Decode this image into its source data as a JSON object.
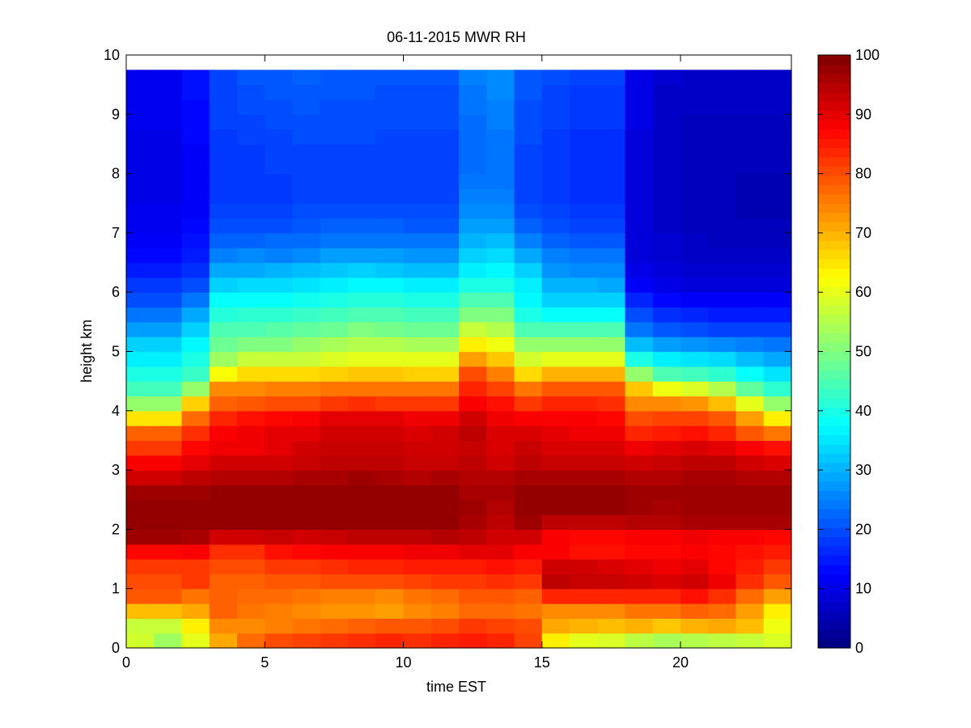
{
  "figure": {
    "background": "#ffffff"
  },
  "chart_data": {
    "type": "heatmap",
    "title": "06-11-2015 MWR RH",
    "xlabel": "time EST",
    "ylabel": "height km",
    "xlim": [
      0,
      24
    ],
    "ylim": [
      0,
      10
    ],
    "xticks": [
      0,
      5,
      10,
      15,
      20
    ],
    "yticks": [
      0,
      1,
      2,
      3,
      4,
      5,
      6,
      7,
      8,
      9,
      10
    ],
    "colorbar": {
      "range": [
        0,
        100
      ],
      "ticks": [
        0,
        10,
        20,
        30,
        40,
        50,
        60,
        70,
        80,
        90,
        100
      ],
      "colormap": "jet"
    },
    "time_step_hours": 1,
    "x": [
      0,
      1,
      2,
      3,
      4,
      5,
      6,
      7,
      8,
      9,
      10,
      11,
      12,
      13,
      14,
      15,
      16,
      17,
      18,
      19,
      20,
      21,
      22,
      23
    ],
    "height_km": [
      0,
      0.25,
      0.5,
      0.75,
      1,
      1.25,
      1.5,
      1.75,
      2,
      2.25,
      2.5,
      2.75,
      3,
      3.25,
      3.5,
      3.75,
      4,
      4.25,
      4.5,
      4.75,
      5,
      5.25,
      5.5,
      5.75,
      6,
      6.25,
      6.5,
      6.75,
      7,
      7.25,
      7.5,
      7.75,
      8,
      8.25,
      8.5,
      8.75,
      9,
      9.25,
      9.5
    ],
    "max_height_km": 9.75,
    "rh_profiles": [
      [
        58,
        57,
        69,
        79,
        80,
        82,
        87,
        97,
        98,
        98,
        97,
        92,
        88,
        82,
        78,
        65,
        52,
        44,
        40,
        36,
        33,
        28,
        24,
        20,
        18,
        15,
        13,
        12,
        11,
        11,
        10,
        10,
        10,
        10,
        10,
        11,
        11,
        11,
        11
      ],
      [
        53,
        57,
        69,
        79,
        80,
        82,
        87,
        97,
        98,
        98,
        97,
        92,
        88,
        82,
        78,
        65,
        52,
        44,
        40,
        36,
        33,
        28,
        24,
        20,
        18,
        15,
        13,
        12,
        11,
        11,
        10,
        10,
        10,
        10,
        10,
        11,
        11,
        11,
        11
      ],
      [
        60,
        64,
        71,
        76,
        82,
        82,
        88,
        96,
        98,
        98,
        97,
        94,
        90,
        87,
        83,
        77,
        67,
        52,
        43,
        40,
        37,
        33,
        29,
        24,
        20,
        17,
        15,
        14,
        13,
        12,
        12,
        12,
        12,
        12,
        13,
        13,
        13,
        14,
        14
      ],
      [
        71,
        74,
        78,
        78,
        78,
        80,
        83,
        92,
        98,
        98,
        98,
        95,
        92,
        89,
        88,
        84,
        78,
        74,
        62,
        53,
        48,
        45,
        41,
        38,
        33,
        29,
        25,
        22,
        20,
        19,
        18,
        18,
        18,
        18,
        18,
        19,
        19,
        19,
        19
      ],
      [
        77,
        74,
        76,
        77,
        78,
        80,
        83,
        92,
        98,
        98,
        98,
        95,
        92,
        89,
        89,
        86,
        79,
        74,
        66,
        57,
        50,
        45,
        42,
        38,
        34,
        29,
        26,
        22,
        20,
        19,
        18,
        18,
        18,
        18,
        19,
        19,
        20,
        20,
        21
      ],
      [
        80,
        75,
        75,
        77,
        79,
        82,
        86,
        93,
        98,
        98,
        98,
        95,
        92,
        90,
        90,
        87,
        80,
        75,
        66,
        57,
        50,
        46,
        42,
        38,
        34,
        30,
        25,
        23,
        20,
        19,
        18,
        18,
        19,
        19,
        19,
        20,
        20,
        21,
        21
      ],
      [
        81,
        76,
        74,
        76,
        79,
        82,
        87,
        92,
        98,
        98,
        98,
        96,
        93,
        92,
        90,
        88,
        80,
        75,
        66,
        57,
        52,
        47,
        43,
        39,
        35,
        31,
        26,
        23,
        21,
        20,
        19,
        19,
        19,
        19,
        20,
        20,
        21,
        21,
        22
      ],
      [
        82,
        77,
        73,
        75,
        80,
        83,
        88,
        93,
        98,
        98,
        98,
        96,
        94,
        93,
        92,
        90,
        82,
        76,
        67,
        59,
        54,
        48,
        44,
        40,
        36,
        32,
        28,
        24,
        22,
        20,
        19,
        19,
        19,
        19,
        20,
        20,
        20,
        21,
        21
      ],
      [
        83,
        78,
        73,
        75,
        80,
        84,
        88,
        94,
        98,
        98,
        98,
        97,
        94,
        93,
        92,
        90,
        83,
        76,
        68,
        60,
        55,
        50,
        45,
        41,
        37,
        33,
        28,
        24,
        22,
        20,
        19,
        19,
        19,
        19,
        20,
        20,
        20,
        21,
        21
      ],
      [
        84,
        79,
        72,
        74,
        80,
        84,
        88,
        94,
        98,
        98,
        98,
        96,
        94,
        93,
        92,
        90,
        82,
        76,
        68,
        60,
        55,
        49,
        45,
        41,
        37,
        32,
        28,
        24,
        22,
        20,
        19,
        19,
        19,
        19,
        19,
        20,
        20,
        20,
        21
      ],
      [
        83,
        79,
        74,
        76,
        81,
        85,
        89,
        94,
        98,
        98,
        98,
        95,
        93,
        92,
        91,
        89,
        82,
        76,
        67,
        60,
        54,
        48,
        44,
        40,
        36,
        31,
        27,
        24,
        21,
        20,
        19,
        19,
        19,
        19,
        19,
        20,
        20,
        20,
        21
      ],
      [
        84,
        80,
        75,
        77,
        82,
        85,
        89,
        95,
        98,
        98,
        98,
        96,
        93,
        92,
        92,
        89,
        82,
        76,
        67,
        60,
        54,
        48,
        44,
        40,
        36,
        31,
        27,
        24,
        21,
        20,
        19,
        19,
        19,
        19,
        19,
        20,
        20,
        20,
        21
      ],
      [
        85,
        82,
        77,
        79,
        82,
        85,
        90,
        94,
        96,
        97,
        96,
        95,
        94,
        93,
        94,
        92,
        88,
        84,
        80,
        72,
        64,
        57,
        50,
        45,
        40,
        36,
        33,
        30,
        28,
        26,
        25,
        24,
        23,
        23,
        23,
        23,
        24,
        24,
        25
      ],
      [
        84,
        81,
        77,
        79,
        83,
        86,
        90,
        92,
        94,
        95,
        96,
        95,
        92,
        91,
        91,
        89,
        86,
        81,
        75,
        68,
        61,
        55,
        50,
        45,
        40,
        37,
        34,
        31,
        28,
        26,
        25,
        24,
        24,
        24,
        24,
        25,
        25,
        26,
        26
      ],
      [
        81,
        80,
        76,
        78,
        82,
        85,
        88,
        92,
        97,
        98,
        98,
        96,
        94,
        93,
        91,
        88,
        82,
        76,
        66,
        58,
        52,
        45,
        40,
        37,
        36,
        33,
        29,
        25,
        22,
        20,
        19,
        19,
        19,
        19,
        20,
        20,
        20,
        21,
        21
      ],
      [
        64,
        71,
        74,
        84,
        94,
        92,
        88,
        88,
        94,
        98,
        98,
        96,
        93,
        91,
        90,
        88,
        84,
        79,
        70,
        60,
        52,
        45,
        38,
        33,
        30,
        27,
        25,
        22,
        20,
        19,
        18,
        18,
        18,
        18,
        18,
        19,
        19,
        19,
        20
      ],
      [
        60,
        70,
        74,
        84,
        93,
        92,
        86,
        87,
        94,
        98,
        98,
        96,
        93,
        91,
        89,
        88,
        84,
        79,
        70,
        60,
        52,
        45,
        38,
        33,
        30,
        26,
        24,
        21,
        19,
        18,
        17,
        17,
        17,
        17,
        17,
        18,
        18,
        18,
        19
      ],
      [
        59,
        69,
        74,
        84,
        93,
        91,
        86,
        87,
        94,
        98,
        98,
        96,
        93,
        91,
        89,
        87,
        83,
        79,
        70,
        60,
        52,
        45,
        38,
        33,
        29,
        26,
        24,
        21,
        19,
        18,
        17,
        17,
        17,
        17,
        17,
        18,
        18,
        18,
        19
      ],
      [
        56,
        70,
        76,
        84,
        92,
        90,
        87,
        88,
        95,
        97,
        97,
        95,
        92,
        89,
        84,
        80,
        74,
        68,
        52,
        40,
        31,
        24,
        20,
        16,
        12,
        10,
        9,
        9,
        9,
        9,
        9,
        9,
        9,
        9,
        9,
        10,
        10,
        10,
        10
      ],
      [
        54,
        68,
        76,
        84,
        91,
        89,
        87,
        88,
        95,
        96,
        97,
        95,
        93,
        90,
        85,
        81,
        74,
        61,
        45,
        36,
        28,
        21,
        17,
        13,
        10,
        9,
        8,
        8,
        7,
        7,
        7,
        7,
        7,
        7,
        7,
        7,
        7,
        7,
        8
      ],
      [
        55,
        70,
        78,
        86,
        92,
        90,
        88,
        89,
        96,
        97,
        97,
        96,
        94,
        91,
        86,
        81,
        73,
        59,
        44,
        35,
        27,
        20,
        16,
        12,
        9,
        8,
        7,
        7,
        6,
        6,
        6,
        6,
        6,
        6,
        6,
        6,
        7,
        7,
        7
      ],
      [
        56,
        71,
        77,
        83,
        89,
        87,
        87,
        88,
        96,
        97,
        97,
        96,
        94,
        90,
        84,
        79,
        69,
        55,
        42,
        34,
        26,
        19,
        15,
        12,
        9,
        8,
        7,
        6,
        6,
        6,
        6,
        6,
        6,
        6,
        6,
        6,
        7,
        7,
        7
      ],
      [
        57,
        69,
        72,
        77,
        83,
        85,
        86,
        88,
        96,
        97,
        97,
        95,
        92,
        88,
        79,
        72,
        60,
        47,
        38,
        31,
        25,
        19,
        15,
        12,
        9,
        8,
        7,
        6,
        6,
        5,
        5,
        5,
        6,
        6,
        6,
        6,
        7,
        7,
        7
      ],
      [
        59,
        61,
        64,
        72,
        79,
        82,
        85,
        87,
        96,
        97,
        97,
        95,
        91,
        86,
        76,
        64,
        52,
        42,
        35,
        29,
        24,
        19,
        15,
        12,
        9,
        8,
        7,
        6,
        6,
        5,
        5,
        5,
        6,
        6,
        6,
        6,
        7,
        7,
        7
      ]
    ]
  }
}
